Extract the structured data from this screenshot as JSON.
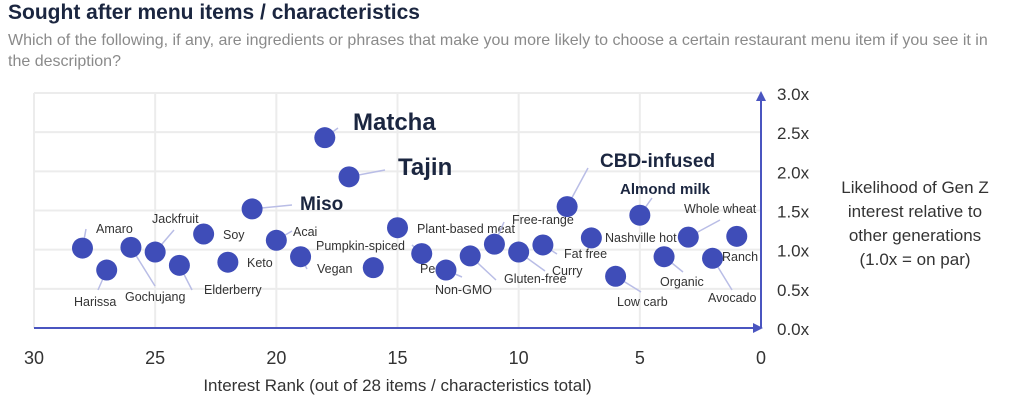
{
  "title": "Sought after menu items / characteristics",
  "subtitle": "Which of the following, if any, are ingredients or phrases that make you more likely to choose a certain restaurant menu item if you see it in the description?",
  "chart_data": {
    "type": "scatter",
    "title": "Sought after menu items / characteristics",
    "xlabel": "Interest Rank (out of 28 items / characteristics total)",
    "ylabel_lines": [
      "Likelihood of Gen Z",
      "interest relative to",
      "other generations",
      "(1.0x = on par)"
    ],
    "xlim": [
      30,
      0
    ],
    "ylim": [
      0,
      3
    ],
    "x_ticks": [
      "30",
      "25",
      "20",
      "15",
      "10",
      "5",
      "0"
    ],
    "y_ticks": [
      "0.0x",
      "0.5x",
      "1.0x",
      "1.5x",
      "2.0x",
      "2.5x",
      "3.0x"
    ],
    "grid": true,
    "point_color": "#3f4db8",
    "points": [
      {
        "label": "Matcha",
        "x": 18,
        "y": 2.43,
        "emphasis": 3
      },
      {
        "label": "Tajin",
        "x": 17,
        "y": 1.93,
        "emphasis": 3
      },
      {
        "label": "Miso",
        "x": 21,
        "y": 1.52,
        "emphasis": 2
      },
      {
        "label": "CBD-infused",
        "x": 8,
        "y": 1.55,
        "emphasis": 2
      },
      {
        "label": "Almond milk",
        "x": 5,
        "y": 1.44,
        "emphasis": 1
      },
      {
        "label": "Amaro",
        "x": 28,
        "y": 1.02
      },
      {
        "label": "Harissa",
        "x": 27,
        "y": 0.74
      },
      {
        "label": "Gochujang",
        "x": 26,
        "y": 1.03
      },
      {
        "label": "Jackfruit",
        "x": 25,
        "y": 0.97
      },
      {
        "label": "Elderberry",
        "x": 24,
        "y": 0.8
      },
      {
        "label": "Soy",
        "x": 23,
        "y": 1.2
      },
      {
        "label": "Keto",
        "x": 22,
        "y": 0.84
      },
      {
        "label": "Acai",
        "x": 20,
        "y": 1.12
      },
      {
        "label": "Vegan",
        "x": 19,
        "y": 0.91
      },
      {
        "label": "Pesto",
        "x": 16,
        "y": 0.77
      },
      {
        "label": "Pumpkin-spiced",
        "x": 14,
        "y": 0.95
      },
      {
        "label": "Plant-based meat",
        "x": 15,
        "y": 1.28
      },
      {
        "label": "Non-GMO",
        "x": 13,
        "y": 0.74
      },
      {
        "label": "Gluten-free",
        "x": 12,
        "y": 0.92
      },
      {
        "label": "Free-range",
        "x": 11,
        "y": 1.07
      },
      {
        "label": "Curry",
        "x": 10,
        "y": 0.97
      },
      {
        "label": "Fat free",
        "x": 9,
        "y": 1.06
      },
      {
        "label": "Nashville hot",
        "x": 7,
        "y": 1.15
      },
      {
        "label": "Low carb",
        "x": 6,
        "y": 0.66
      },
      {
        "label": "Organic",
        "x": 4,
        "y": 0.91
      },
      {
        "label": "Whole wheat",
        "x": 3,
        "y": 1.16
      },
      {
        "label": "Avocado",
        "x": 2,
        "y": 0.89
      },
      {
        "label": "Ranch",
        "x": 1,
        "y": 1.17
      }
    ]
  }
}
